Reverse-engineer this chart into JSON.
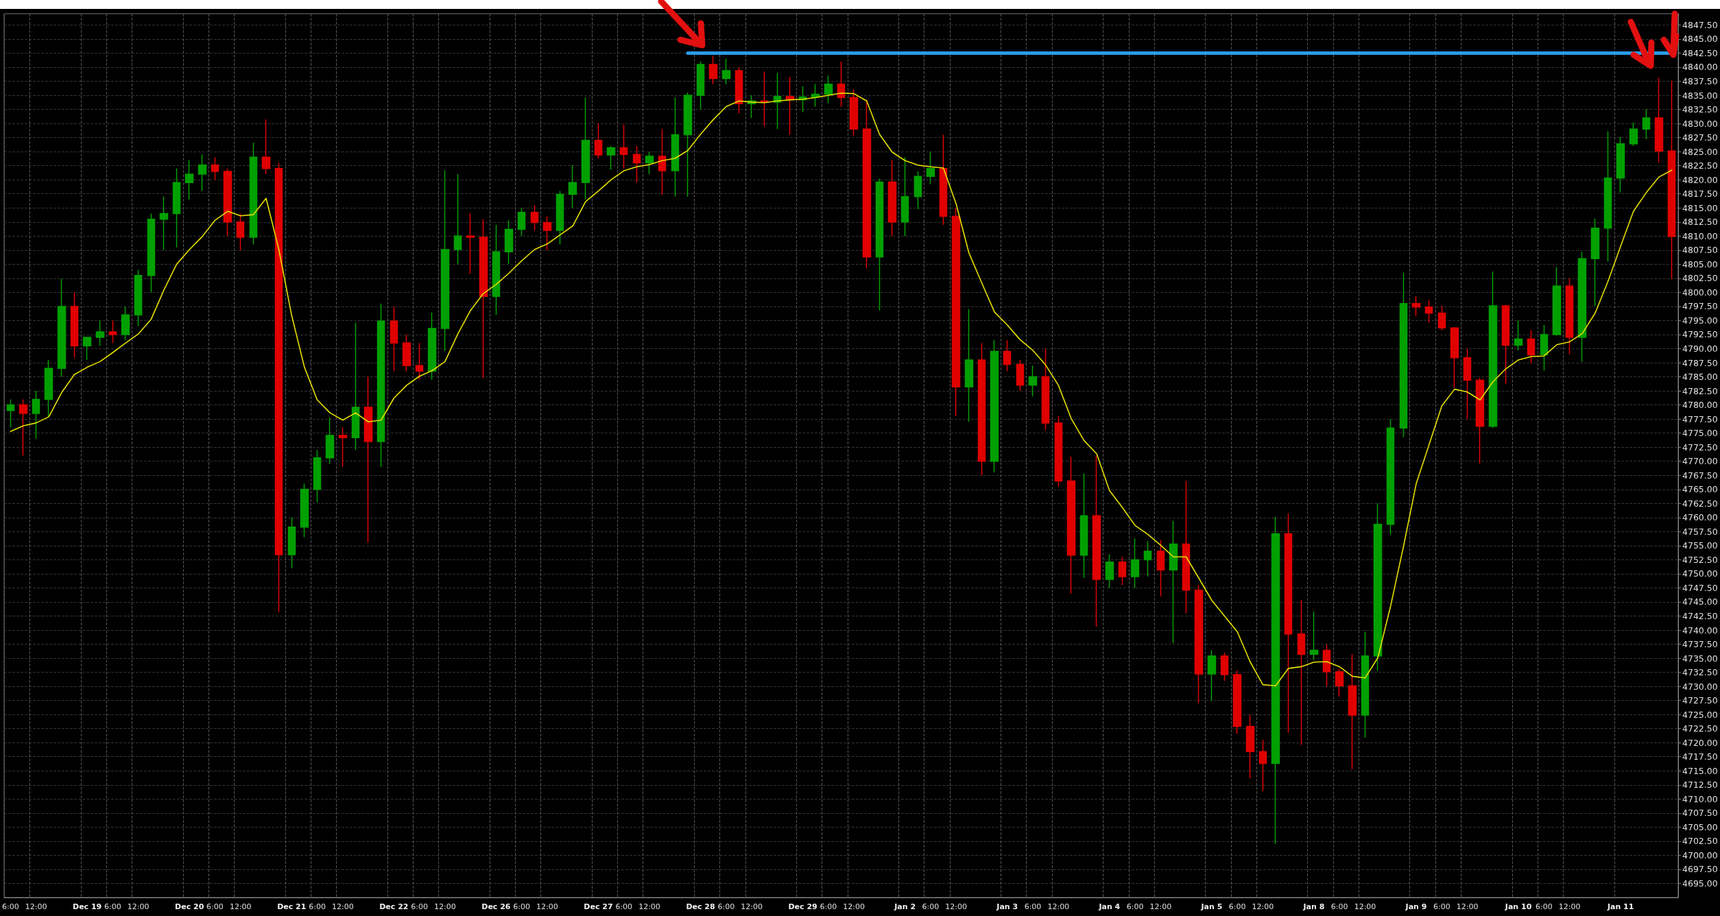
{
  "chart_data": {
    "type": "candlestick",
    "categories": [
      "6:00",
      null,
      "12:00",
      null,
      null,
      null,
      "Dec 19",
      null,
      "6:00",
      null,
      "12:00",
      null,
      null,
      null,
      "Dec 20",
      null,
      "6:00",
      null,
      "12:00",
      null,
      null,
      null,
      "Dec 21",
      null,
      "6:00",
      null,
      "12:00",
      null,
      null,
      null,
      "Dec 22",
      null,
      "6:00",
      null,
      "12:00",
      null,
      null,
      null,
      "Dec 26",
      null,
      "6:00",
      null,
      "12:00",
      null,
      null,
      null,
      "Dec 27",
      null,
      "6:00",
      null,
      "12:00",
      null,
      null,
      null,
      "Dec 28",
      null,
      "6:00",
      null,
      "12:00",
      null,
      null,
      null,
      "Dec 29",
      null,
      "6:00",
      null,
      "12:00",
      null,
      null,
      null,
      "Jan 2",
      null,
      "6:00",
      null,
      "12:00",
      null,
      null,
      null,
      "Jan 3",
      null,
      "6:00",
      null,
      "12:00",
      null,
      null,
      null,
      "Jan 4",
      null,
      "6:00",
      null,
      "12:00",
      null,
      null,
      null,
      "Jan 5",
      null,
      "6:00",
      null,
      "12:00",
      null,
      null,
      null,
      "Jan 8",
      null,
      "6:00",
      null,
      "12:00",
      null,
      null,
      null,
      "Jan 9",
      null,
      "6:00",
      null,
      "12:00",
      null,
      null,
      null,
      "Jan 10",
      null,
      "6:00",
      null,
      "12:00",
      null,
      null,
      null,
      "Jan 11",
      null,
      null,
      null,
      null
    ],
    "ohlc": [
      [
        4779,
        4781,
        4776,
        4780
      ],
      [
        4780,
        4781,
        4771,
        4778.5
      ],
      [
        4778.5,
        4782.5,
        4774,
        4781
      ],
      [
        4781,
        4788,
        4778,
        4786.5
      ],
      [
        4786.5,
        4802.4,
        4785,
        4797.5
      ],
      [
        4797.5,
        4800,
        4788.4,
        4790.5
      ],
      [
        4790.5,
        4792,
        4788,
        4792
      ],
      [
        4792,
        4795,
        4790.5,
        4793
      ],
      [
        4793,
        4795,
        4791,
        4792.5
      ],
      [
        4792.5,
        4797.5,
        4791.5,
        4796
      ],
      [
        4796,
        4804,
        4794,
        4803
      ],
      [
        4803,
        4814,
        4800,
        4813
      ],
      [
        4813,
        4817,
        4807.5,
        4814
      ],
      [
        4814,
        4822,
        4808,
        4819.5
      ],
      [
        4819.5,
        4823.5,
        4816.5,
        4821
      ],
      [
        4821,
        4824.5,
        4818,
        4822.6
      ],
      [
        4822.6,
        4824,
        4820,
        4821.5
      ],
      [
        4821.5,
        4822,
        4810,
        4812.5
      ],
      [
        4812.5,
        4814,
        4807.5,
        4809.8
      ],
      [
        4809.8,
        4826.6,
        4808.5,
        4824
      ],
      [
        4824,
        4830.7,
        4821,
        4822
      ],
      [
        4822,
        4823,
        4743.2,
        4753.4
      ],
      [
        4753.4,
        4760,
        4751,
        4758.3
      ],
      [
        4758.3,
        4766,
        4756.5,
        4765
      ],
      [
        4765,
        4772,
        4762.7,
        4770.6
      ],
      [
        4770.6,
        4777.8,
        4769.5,
        4774.6
      ],
      [
        4774.6,
        4776,
        4769,
        4774.2
      ],
      [
        4774.2,
        4794.6,
        4772,
        4779.6
      ],
      [
        4779.6,
        4785,
        4755.6,
        4773.5
      ],
      [
        4773.5,
        4798,
        4769,
        4794.9
      ],
      [
        4794.9,
        4797.5,
        4786,
        4791
      ],
      [
        4791,
        4792.5,
        4786,
        4787
      ],
      [
        4787,
        4791,
        4784.5,
        4786
      ],
      [
        4786,
        4796.4,
        4784.5,
        4793.6
      ],
      [
        4793.6,
        4821.7,
        4789.6,
        4807.6
      ],
      [
        4807.6,
        4821,
        4805,
        4810
      ],
      [
        4810,
        4814,
        4803.3,
        4809.8
      ],
      [
        4809.8,
        4813,
        4784.8,
        4799.3
      ],
      [
        4799.3,
        4812,
        4796,
        4807.2
      ],
      [
        4807.2,
        4812.8,
        4805,
        4811.2
      ],
      [
        4811.2,
        4815,
        4810,
        4814.2
      ],
      [
        4814.2,
        4815.5,
        4811,
        4812.4
      ],
      [
        4812.4,
        4813.5,
        4807.5,
        4811
      ],
      [
        4811,
        4818,
        4808.5,
        4817.4
      ],
      [
        4817.4,
        4822.6,
        4815,
        4819.5
      ],
      [
        4819.5,
        4834.6,
        4816.5,
        4827
      ],
      [
        4827,
        4830,
        4823.8,
        4824.4
      ],
      [
        4824.4,
        4826,
        4821.8,
        4825.7
      ],
      [
        4825.7,
        4829.8,
        4822,
        4824.5
      ],
      [
        4824.5,
        4826,
        4819.5,
        4823
      ],
      [
        4823,
        4825,
        4821,
        4824.2
      ],
      [
        4824.2,
        4829,
        4817.4,
        4821.6
      ],
      [
        4821.6,
        4834.6,
        4817,
        4828
      ],
      [
        4828,
        4835.5,
        4817,
        4835
      ],
      [
        4835,
        4841,
        4832.5,
        4840.5
      ],
      [
        4840.5,
        4842,
        4837,
        4838
      ],
      [
        4838,
        4841.5,
        4837,
        4839.4
      ],
      [
        4839.4,
        4840,
        4831.8,
        4833.5
      ],
      [
        4833.5,
        4835,
        4831,
        4834
      ],
      [
        4834,
        4839.2,
        4829.5,
        4833.8
      ],
      [
        4833.8,
        4839,
        4829,
        4834.8
      ],
      [
        4834.8,
        4838.3,
        4828,
        4834.2
      ],
      [
        4834.2,
        4836.6,
        4832,
        4834.7
      ],
      [
        4834.7,
        4837,
        4833,
        4835.2
      ],
      [
        4835.2,
        4838.5,
        4833.6,
        4837
      ],
      [
        4837,
        4841,
        4833,
        4834.6
      ],
      [
        4834.6,
        4836,
        4827.8,
        4829
      ],
      [
        4829,
        4834.2,
        4804.3,
        4806.3
      ],
      [
        4806.3,
        4820.2,
        4796.8,
        4819.6
      ],
      [
        4819.6,
        4823.5,
        4810,
        4812.5
      ],
      [
        4812.5,
        4824,
        4810,
        4817
      ],
      [
        4817,
        4821.5,
        4814.8,
        4820.6
      ],
      [
        4820.6,
        4825,
        4819.2,
        4822
      ],
      [
        4822,
        4828,
        4812,
        4813.5
      ],
      [
        4813.5,
        4815,
        4778,
        4783.2
      ],
      [
        4783.2,
        4797,
        4777,
        4788
      ],
      [
        4788,
        4791,
        4767.5,
        4770
      ],
      [
        4770,
        4791.5,
        4768,
        4789.5
      ],
      [
        4789.5,
        4791.5,
        4786,
        4787.2
      ],
      [
        4787.2,
        4788,
        4782.5,
        4783.5
      ],
      [
        4783.5,
        4787,
        4781.5,
        4785
      ],
      [
        4785,
        4790,
        4775.5,
        4776.8
      ],
      [
        4776.8,
        4778,
        4765.5,
        4766.5
      ],
      [
        4766.5,
        4770.8,
        4746.5,
        4753.3
      ],
      [
        4753.3,
        4767.8,
        4749.3,
        4760.3
      ],
      [
        4760.3,
        4771,
        4740.6,
        4749
      ],
      [
        4749,
        4753.5,
        4747.5,
        4752.1
      ],
      [
        4752.1,
        4753,
        4748,
        4749.5
      ],
      [
        4749.5,
        4756.3,
        4747.5,
        4752.5
      ],
      [
        4752.5,
        4755.8,
        4749.5,
        4754
      ],
      [
        4754,
        4756,
        4746,
        4750.7
      ],
      [
        4750.7,
        4759.4,
        4737.7,
        4755.3
      ],
      [
        4755.3,
        4766.5,
        4743,
        4747.1
      ],
      [
        4747.1,
        4748,
        4727,
        4732.2
      ],
      [
        4732.2,
        4736.4,
        4727.4,
        4735.4
      ],
      [
        4735.4,
        4736,
        4731,
        4732.1
      ],
      [
        4732.1,
        4732.8,
        4721.6,
        4722.9
      ],
      [
        4722.9,
        4725,
        4713.7,
        4718.4
      ],
      [
        4718.4,
        4720.5,
        4711.4,
        4716.3
      ],
      [
        4716.3,
        4760.1,
        4702,
        4757.1
      ],
      [
        4757.1,
        4760.7,
        4721.8,
        4739.3
      ],
      [
        4739.3,
        4745.4,
        4719.6,
        4735.7
      ],
      [
        4735.7,
        4743.3,
        4734.7,
        4736.4
      ],
      [
        4736.4,
        4737.4,
        4730,
        4732.6
      ],
      [
        4732.6,
        4733.1,
        4728.2,
        4730.1
      ],
      [
        4730.1,
        4735.7,
        4715.3,
        4724.9
      ],
      [
        4724.9,
        4739.7,
        4720.9,
        4735.4
      ],
      [
        4735.4,
        4762.5,
        4732.8,
        4758.8
      ],
      [
        4758.8,
        4777.5,
        4757,
        4775.9
      ],
      [
        4775.9,
        4803.5,
        4774.3,
        4798
      ],
      [
        4798,
        4799.3,
        4795.8,
        4797.4
      ],
      [
        4797.4,
        4798.6,
        4794.6,
        4796.3
      ],
      [
        4796.3,
        4797.6,
        4793.3,
        4793.7
      ],
      [
        4793.7,
        4793.8,
        4783.1,
        4788.4
      ],
      [
        4788.4,
        4790,
        4777.5,
        4784.4
      ],
      [
        4784.4,
        4784.8,
        4769.6,
        4776.2
      ],
      [
        4776.2,
        4803.7,
        4775.9,
        4797.6
      ],
      [
        4797.6,
        4797.8,
        4783.8,
        4790.6
      ],
      [
        4790.6,
        4795,
        4789.7,
        4791.7
      ],
      [
        4791.7,
        4793.3,
        4787.4,
        4788.9
      ],
      [
        4788.9,
        4794.2,
        4786.1,
        4792.5
      ],
      [
        4792.5,
        4804.5,
        4792.3,
        4801.1
      ],
      [
        4801.1,
        4802.5,
        4789,
        4792
      ],
      [
        4792,
        4807.2,
        4787.7,
        4806
      ],
      [
        4806,
        4813.1,
        4797.6,
        4811.4
      ],
      [
        4811.4,
        4828.6,
        4805.5,
        4820.3
      ],
      [
        4820.3,
        4827.6,
        4817.7,
        4826.4
      ],
      [
        4826.4,
        4830.2,
        4826,
        4829
      ],
      [
        4829,
        4832.6,
        4827.2,
        4831
      ],
      [
        4831,
        4838.1,
        4823,
        4825.1
      ],
      [
        4825.1,
        4837.6,
        4802.4,
        4809.9
      ]
    ],
    "colors": [
      "#00a000",
      "#e00000",
      "#00a000",
      "#00a000",
      "#00a000",
      "#e00000",
      "#00a000",
      "#00a000",
      "#e00000",
      "#00a000",
      "#00a000",
      "#00a000",
      "#00a000",
      "#00a000",
      "#00a000",
      "#00a000",
      "#e00000",
      "#e00000",
      "#e00000",
      "#00a000",
      "#e00000",
      "#e00000",
      "#00a000",
      "#00a000",
      "#00a000",
      "#00a000",
      "#e00000",
      "#00a000",
      "#e00000",
      "#00a000",
      "#e00000",
      "#e00000",
      "#e00000",
      "#00a000",
      "#00a000",
      "#00a000",
      "#e00000",
      "#e00000",
      "#00a000",
      "#00a000",
      "#00a000",
      "#e00000",
      "#e00000",
      "#00a000",
      "#00a000",
      "#00a000",
      "#e00000",
      "#00a000",
      "#e00000",
      "#e00000",
      "#00a000",
      "#e00000",
      "#00a000",
      "#00a000",
      "#00a000",
      "#e00000",
      "#00a000",
      "#e00000",
      "#00a000",
      "#e00000",
      "#00a000",
      "#e00000",
      "#00a000",
      "#00a000",
      "#00a000",
      "#e00000",
      "#e00000",
      "#e00000",
      "#00a000",
      "#e00000",
      "#00a000",
      "#00a000",
      "#00a000",
      "#e00000",
      "#e00000",
      "#00a000",
      "#e00000",
      "#00a000",
      "#e00000",
      "#e00000",
      "#00a000",
      "#e00000",
      "#e00000",
      "#e00000",
      "#00a000",
      "#e00000",
      "#00a000",
      "#e00000",
      "#00a000",
      "#00a000",
      "#e00000",
      "#00a000",
      "#e00000",
      "#e00000",
      "#00a000",
      "#e00000",
      "#e00000",
      "#e00000",
      "#e00000",
      "#00a000",
      "#e00000",
      "#e00000",
      "#00a000",
      "#e00000",
      "#e00000",
      "#e00000",
      "#00a000",
      "#00a000",
      "#00a000",
      "#00a000",
      "#e00000",
      "#e00000",
      "#e00000",
      "#e00000",
      "#e00000",
      "#e00000",
      "#00a000",
      "#e00000",
      "#00a000",
      "#e00000",
      "#00a000",
      "#00a000",
      "#e00000",
      "#00a000",
      "#00a000",
      "#00a000",
      "#00a000",
      "#00a000",
      "#00a000",
      "#e00000",
      "#e00000"
    ],
    "series": [
      {
        "type": "line",
        "color": "#e6e000",
        "values": [
          4775.3,
          4776.3,
          4776.8,
          4777.9,
          4782.2,
          4785.4,
          4786.7,
          4787.7,
          4789.3,
          4791,
          4792.6,
          4795.2,
          4800.4,
          4805,
          4807.6,
          4809.9,
          4812.8,
          4814.4,
          4813.6,
          4813.8,
          4816.7,
          4807.6,
          4795.9,
          4786.7,
          4780.9,
          4778.6,
          4777.3,
          4778.6,
          4777,
          4777.3,
          4781.2,
          4783.5,
          4785.1,
          4786.1,
          4787.7,
          4792.6,
          4796.8,
          4799.8,
          4801.4,
          4803.4,
          4805.6,
          4807.6,
          4808.6,
          4810.2,
          4811.8,
          4816.1,
          4818,
          4820,
          4821.6,
          4822.3,
          4822.7,
          4823.4,
          4823.8,
          4825.2,
          4828.1,
          4830.7,
          4833,
          4834,
          4833.8,
          4833.7,
          4834,
          4834.2,
          4834.3,
          4834.6,
          4835,
          4835.4,
          4835.3,
          4834,
          4828.1,
          4824.9,
          4823.4,
          4822.6,
          4822.3,
          4822.1,
          4815.7,
          4807,
          4801.7,
          4796.5,
          4794.2,
          4791.6,
          4789.7,
          4787.1,
          4783.5,
          4777.6,
          4773.7,
          4771.3,
          4764.8,
          4761.8,
          4758.6,
          4757,
          4755.1,
          4753,
          4753,
          4749.2,
          4745.3,
          4742.5,
          4739.7,
          4734.4,
          4730.3,
          4730.1,
          4733.2,
          4733.5,
          4734.3,
          4734.4,
          4733.5,
          4731.8,
          4731.5,
          4735.1,
          4744.3,
          4754.8,
          4766,
          4772.9,
          4779.8,
          4782.8,
          4782.3,
          4780.9,
          4784.1,
          4786.4,
          4788,
          4788.6,
          4788.7,
          4790.7,
          4791.2,
          4792.7,
          4796.3,
          4801.9,
          4808.2,
          4814.4,
          4817.7,
          4820.5,
          4821.7
        ]
      },
      {
        "type": "line",
        "color": "#2b9be8",
        "values": [
          null,
          null,
          null,
          null,
          null,
          null,
          null,
          null,
          null,
          null,
          null,
          null,
          null,
          null,
          null,
          null,
          null,
          null,
          null,
          null,
          null,
          null,
          null,
          null,
          null,
          null,
          null,
          null,
          null,
          null,
          null,
          null,
          null,
          null,
          null,
          null,
          null,
          null,
          null,
          null,
          null,
          null,
          null,
          null,
          null,
          null,
          null,
          null,
          null,
          null,
          null,
          null,
          null,
          4842.5,
          4842.5,
          4842.5,
          4842.5,
          4842.5,
          4842.5,
          4842.5,
          4842.5,
          4842.5,
          4842.5,
          4842.5,
          4842.5,
          4842.5,
          4842.5,
          4842.5,
          4842.5,
          4842.5,
          4842.5,
          4842.5,
          4842.5,
          4842.5,
          4842.5,
          4842.5,
          4842.5,
          4842.5,
          4842.5,
          4842.5,
          4842.5,
          4842.5,
          4842.5,
          4842.5,
          4842.5,
          4842.5,
          4842.5,
          4842.5,
          4842.5,
          4842.5,
          4842.5,
          4842.5,
          4842.5,
          4842.5,
          4842.5,
          4842.5,
          4842.5,
          4842.5,
          4842.5,
          4842.5,
          4842.5,
          4842.5,
          4842.5,
          4842.5,
          4842.5,
          4842.5,
          4842.5,
          4842.5,
          4842.5,
          4842.5,
          4842.5,
          4842.5,
          4842.5,
          4842.5,
          4842.5,
          4842.5,
          4842.5,
          4842.5,
          4842.5,
          4842.5,
          4842.5,
          4842.5,
          4842.5,
          4842.5,
          4842.5,
          4842.5,
          4842.5,
          4842.5,
          4842.5,
          4842.5,
          4842.5
        ]
      }
    ],
    "ylim": [
      4692.5,
      4849.5
    ],
    "yticks": [
      {
        "value": 4695,
        "label": "4695.00"
      },
      {
        "value": 4697.5,
        "label": "4697.50"
      },
      {
        "value": 4700,
        "label": "4700.00"
      },
      {
        "value": 4702.5,
        "label": "4702.50"
      },
      {
        "value": 4705,
        "label": "4705.00"
      },
      {
        "value": 4707.5,
        "label": "4707.50"
      },
      {
        "value": 4710,
        "label": "4710.00"
      },
      {
        "value": 4712.5,
        "label": "4712.50"
      },
      {
        "value": 4715,
        "label": "4715.00"
      },
      {
        "value": 4717.5,
        "label": "4717.50"
      },
      {
        "value": 4720,
        "label": "4720.00"
      },
      {
        "value": 4722.5,
        "label": "4722.50"
      },
      {
        "value": 4725,
        "label": "4725.00"
      },
      {
        "value": 4727.5,
        "label": "4727.50"
      },
      {
        "value": 4730,
        "label": "4730.00"
      },
      {
        "value": 4732.5,
        "label": "4732.50"
      },
      {
        "value": 4735,
        "label": "4735.00"
      },
      {
        "value": 4737.5,
        "label": "4737.50"
      },
      {
        "value": 4740,
        "label": "4740.00"
      },
      {
        "value": 4742.5,
        "label": "4742.50"
      },
      {
        "value": 4745,
        "label": "4745.00"
      },
      {
        "value": 4747.5,
        "label": "4747.50"
      },
      {
        "value": 4750,
        "label": "4750.00"
      },
      {
        "value": 4752.5,
        "label": "4752.50"
      },
      {
        "value": 4755,
        "label": "4755.00"
      },
      {
        "value": 4757.5,
        "label": "4757.50"
      },
      {
        "value": 4760,
        "label": "4760.00"
      },
      {
        "value": 4762.5,
        "label": "4762.50"
      },
      {
        "value": 4765,
        "label": "4765.00"
      },
      {
        "value": 4767.5,
        "label": "4767.50"
      },
      {
        "value": 4770,
        "label": "4770.00"
      },
      {
        "value": 4772.5,
        "label": "4772.50"
      },
      {
        "value": 4775,
        "label": "4775.00"
      },
      {
        "value": 4777.5,
        "label": "4777.50"
      },
      {
        "value": 4780,
        "label": "4780.00"
      },
      {
        "value": 4782.5,
        "label": "4782.50"
      },
      {
        "value": 4785,
        "label": "4785.00"
      },
      {
        "value": 4787.5,
        "label": "4787.50"
      },
      {
        "value": 4790,
        "label": "4790.00"
      },
      {
        "value": 4792.5,
        "label": "4792.50"
      },
      {
        "value": 4795,
        "label": "4795.00"
      },
      {
        "value": 4797.5,
        "label": "4797.50"
      },
      {
        "value": 4800,
        "label": "4800.00"
      },
      {
        "value": 4802.5,
        "label": "4802.50"
      },
      {
        "value": 4805,
        "label": "4805.00"
      },
      {
        "value": 4807.5,
        "label": "4807.50"
      },
      {
        "value": 4810,
        "label": "4810.00"
      },
      {
        "value": 4812.5,
        "label": "4812.50"
      },
      {
        "value": 4815,
        "label": "4815.00"
      },
      {
        "value": 4817.5,
        "label": "4817.50"
      },
      {
        "value": 4820,
        "label": "4820.00"
      },
      {
        "value": 4822.5,
        "label": "4822.50"
      },
      {
        "value": 4825,
        "label": "4825.00"
      },
      {
        "value": 4827.5,
        "label": "4827.50"
      },
      {
        "value": 4830,
        "label": "4830.00"
      },
      {
        "value": 4832.5,
        "label": "4832.50"
      },
      {
        "value": 4835,
        "label": "4835.00"
      },
      {
        "value": 4837.5,
        "label": "4837.50"
      },
      {
        "value": 4840,
        "label": "4840.00"
      },
      {
        "value": 4842.5,
        "label": "4842.50"
      },
      {
        "value": 4845,
        "label": "4845.00"
      },
      {
        "value": 4847.5,
        "label": "4847.50"
      }
    ],
    "grid": true,
    "marker": "none"
  }
}
